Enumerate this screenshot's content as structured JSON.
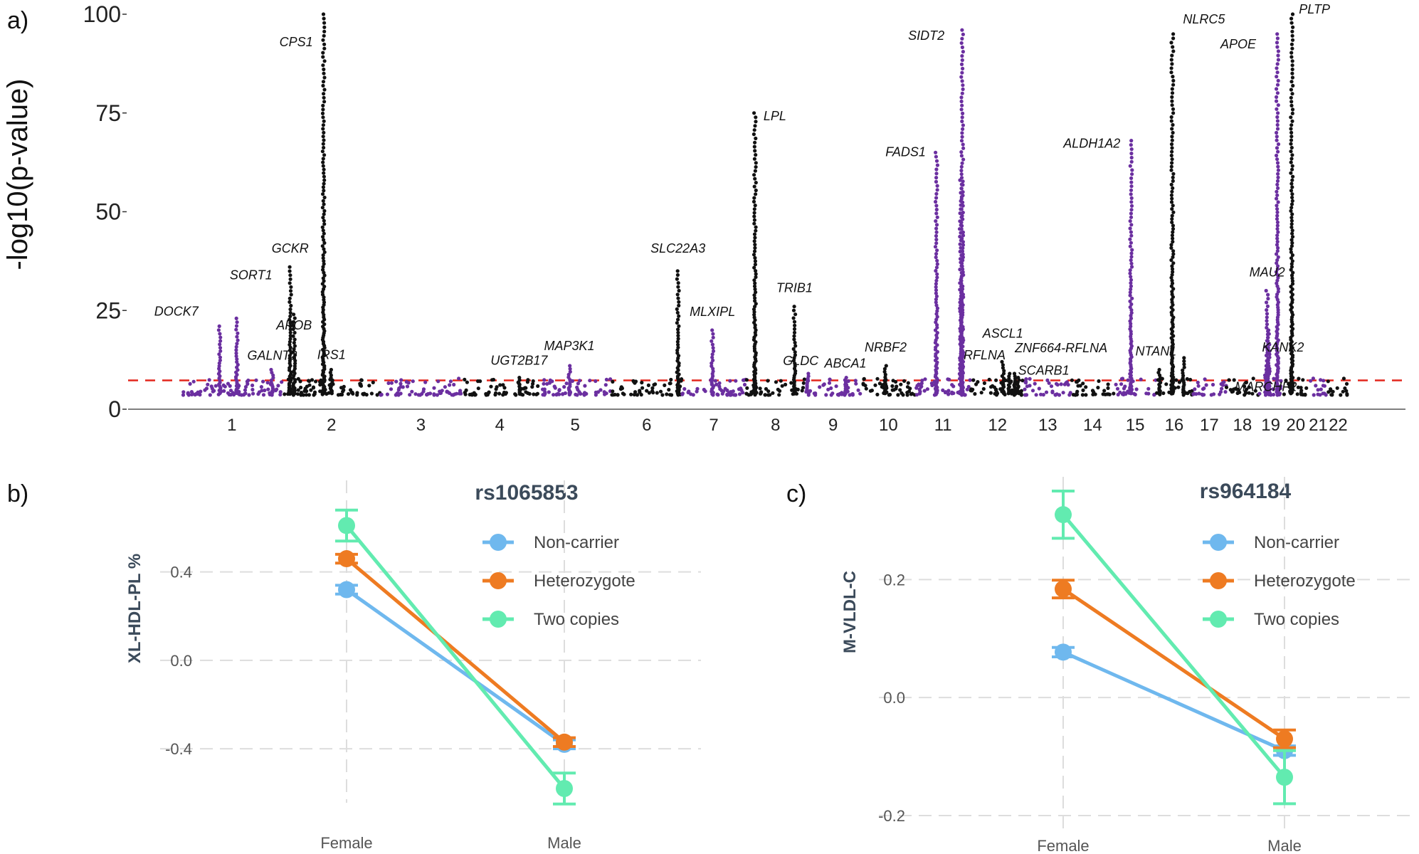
{
  "panel_labels": {
    "a": "a)",
    "b": "b)",
    "c": "c)"
  },
  "colors": {
    "black": "#111111",
    "purple": "#6b2fa0",
    "threshold": "#e3261d",
    "noncarrier": "#6fb8ee",
    "heterozygote": "#ee7b22",
    "twocopies": "#62ebb0",
    "grid": "#dddddd"
  },
  "chart_data": [
    {
      "type": "scatter",
      "subtype": "manhattan",
      "title": "",
      "xlabel": "",
      "ylabel": "-log10(p-value)",
      "ylim": [
        0,
        100
      ],
      "yticks": [
        "0",
        "25",
        "50",
        "75",
        "100"
      ],
      "threshold": 7.3,
      "chromosomes": [
        "1",
        "2",
        "3",
        "4",
        "5",
        "6",
        "7",
        "8",
        "9",
        "10",
        "11",
        "12",
        "13",
        "14",
        "15",
        "16",
        "17",
        "18",
        "19",
        "20",
        "21",
        "22"
      ],
      "peaks": [
        {
          "gene": "DOCK7",
          "chr": "1",
          "pos": 0.38,
          "value": 21,
          "color": "purple"
        },
        {
          "gene": "SORT1",
          "chr": "1",
          "pos": 0.55,
          "value": 23,
          "color": "purple"
        },
        {
          "gene": "GALNT2",
          "chr": "1",
          "pos": 0.9,
          "value": 10,
          "color": "purple"
        },
        {
          "gene": "GCKR",
          "chr": "2",
          "pos": 0.08,
          "value": 36,
          "color": "black"
        },
        {
          "gene": "APOB",
          "chr": "2",
          "pos": 0.12,
          "value": 24,
          "color": "black"
        },
        {
          "gene": "CPS1",
          "chr": "2",
          "pos": 0.42,
          "value": 100,
          "color": "black"
        },
        {
          "gene": "IRS1",
          "chr": "2",
          "pos": 0.5,
          "value": 10,
          "color": "black"
        },
        {
          "gene": "UGT2B17",
          "chr": "4",
          "pos": 0.75,
          "value": 8,
          "color": "black"
        },
        {
          "gene": "MAP3K1",
          "chr": "5",
          "pos": 0.42,
          "value": 11,
          "color": "purple"
        },
        {
          "gene": "SLC22A3",
          "chr": "6",
          "pos": 0.95,
          "value": 35,
          "color": "black"
        },
        {
          "gene": "MLXIPL",
          "chr": "7",
          "pos": 0.48,
          "value": 20,
          "color": "purple"
        },
        {
          "gene": "LPL",
          "chr": "8",
          "pos": 0.15,
          "value": 75,
          "color": "black"
        },
        {
          "gene": "TRIB1",
          "chr": "8",
          "pos": 0.82,
          "value": 26,
          "color": "black"
        },
        {
          "gene": "GLDC",
          "chr": "9",
          "pos": 0.05,
          "value": 9,
          "color": "purple"
        },
        {
          "gene": "ABCA1",
          "chr": "9",
          "pos": 0.72,
          "value": 8,
          "color": "purple"
        },
        {
          "gene": "NRBF2",
          "chr": "10",
          "pos": 0.45,
          "value": 11,
          "color": "black"
        },
        {
          "gene": "FADS1",
          "chr": "11",
          "pos": 0.38,
          "value": 65,
          "color": "purple"
        },
        {
          "gene": "SIDT2",
          "chr": "11",
          "pos": 0.85,
          "value": 96,
          "color": "purple"
        },
        {
          "gene": "",
          "chr": "11",
          "pos": 0.82,
          "value": 58,
          "color": "purple"
        },
        {
          "gene": "ASCL1",
          "chr": "12",
          "pos": 0.6,
          "value": 12,
          "color": "black"
        },
        {
          "gene": "RFLNA",
          "chr": "12",
          "pos": 0.72,
          "value": 9,
          "color": "black"
        },
        {
          "gene": "ZNF664-RFLNA",
          "chr": "12",
          "pos": 0.82,
          "value": 9,
          "color": "black"
        },
        {
          "gene": "SCARB1",
          "chr": "12",
          "pos": 0.88,
          "value": 8,
          "color": "black"
        },
        {
          "gene": "ALDH1A2",
          "chr": "15",
          "pos": 0.4,
          "value": 68,
          "color": "purple"
        },
        {
          "gene": "NTAN1",
          "chr": "16",
          "pos": 0.1,
          "value": 10,
          "color": "black"
        },
        {
          "gene": "NLRC5",
          "chr": "16",
          "pos": 0.45,
          "value": 95,
          "color": "black"
        },
        {
          "gene": "",
          "chr": "16",
          "pos": 0.75,
          "value": 13,
          "color": "black"
        },
        {
          "gene": "MAU2",
          "chr": "19",
          "pos": 0.35,
          "value": 30,
          "color": "purple"
        },
        {
          "gene": "KANK2",
          "chr": "19",
          "pos": 0.42,
          "value": 20,
          "color": "purple"
        },
        {
          "gene": "MARCHF2",
          "chr": "19",
          "pos": 0.3,
          "value": 10,
          "color": "purple"
        },
        {
          "gene": "APOE",
          "chr": "19",
          "pos": 0.78,
          "value": 95,
          "color": "purple"
        },
        {
          "gene": "PLTP",
          "chr": "20",
          "pos": 0.35,
          "value": 100,
          "color": "black"
        }
      ]
    },
    {
      "type": "line",
      "title": "rs1065853",
      "xlabel": "",
      "ylabel": "XL-HDL-PL %",
      "categories": [
        "Female",
        "Male"
      ],
      "ylim": [
        -0.58,
        0.75
      ],
      "yticks": [
        "0.4",
        "0.0",
        "-0.4"
      ],
      "series": [
        {
          "name": "Non-carrier",
          "values": [
            0.32,
            -0.38
          ],
          "err": [
            0.02,
            0.02
          ]
        },
        {
          "name": "Heterozygote",
          "values": [
            0.46,
            -0.37
          ],
          "err": [
            0.02,
            0.02
          ]
        },
        {
          "name": "Two copies",
          "values": [
            0.61,
            -0.58
          ],
          "err": [
            0.07,
            0.07
          ]
        }
      ]
    },
    {
      "type": "line",
      "title": "rs964184",
      "xlabel": "",
      "ylabel": "M-VLDL-C",
      "categories": [
        "Female",
        "Male"
      ],
      "ylim": [
        -0.2,
        0.35
      ],
      "yticks": [
        "0.2",
        "0.0",
        "-0.2"
      ],
      "series": [
        {
          "name": "Non-carrier",
          "values": [
            0.077,
            -0.09
          ],
          "err": [
            0.008,
            0.008
          ]
        },
        {
          "name": "Heterozygote",
          "values": [
            0.184,
            -0.07
          ],
          "err": [
            0.015,
            0.015
          ]
        },
        {
          "name": "Two copies",
          "values": [
            0.31,
            -0.135
          ],
          "err": [
            0.04,
            0.045
          ]
        }
      ]
    }
  ]
}
